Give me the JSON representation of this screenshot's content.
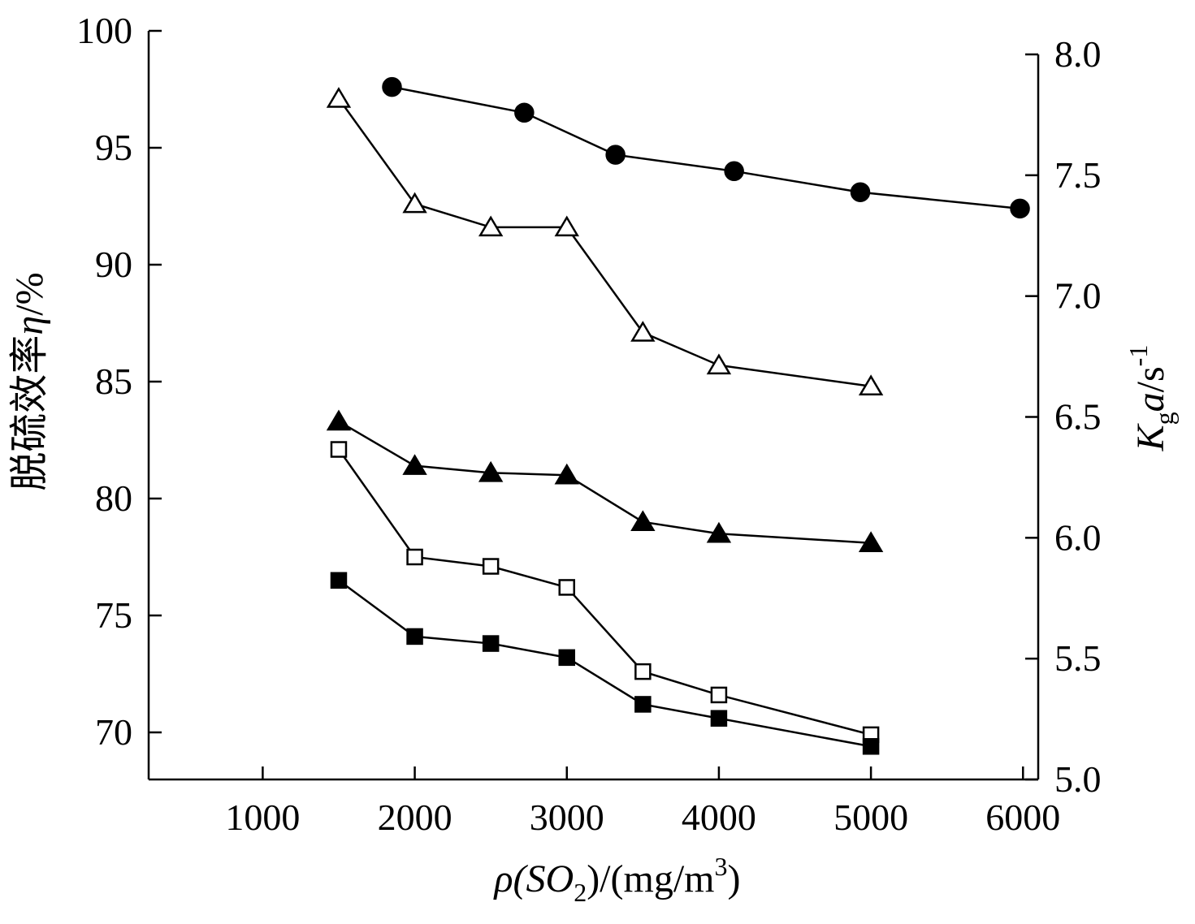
{
  "chart_data": {
    "type": "scatter",
    "xlabel": {
      "prefix": "ρ(SO",
      "sub": "2",
      "mid": ")/(mg/m",
      "sup": "3",
      "suffix": ")"
    },
    "ylabel_left": {
      "text": "脱硫效率",
      "symbol": "η",
      "unit": "/%"
    },
    "ylabel_right": {
      "k": "K",
      "sub": "g",
      "a": "a",
      "unit": "/s",
      "sup": "-1"
    },
    "x_ticks": [
      "1000",
      "2000",
      "3000",
      "4000",
      "5000",
      "6000"
    ],
    "y_left_ticks": [
      "70",
      "75",
      "80",
      "85",
      "90",
      "95",
      "100"
    ],
    "y_right_ticks": [
      "5.0",
      "5.5",
      "6.0",
      "6.5",
      "7.0",
      "7.5",
      "8.0"
    ],
    "xlim": [
      250,
      6100
    ],
    "ylim_left": [
      68,
      100
    ],
    "ylim_right": [
      5.0,
      8.0
    ],
    "grid": false,
    "series": [
      {
        "axis": "left",
        "marker": "filled-circle",
        "x": [
          1850,
          2720,
          3320,
          4100,
          4930,
          5980
        ],
        "y": [
          97.6,
          96.5,
          94.7,
          94.0,
          93.1,
          92.4
        ]
      },
      {
        "axis": "left",
        "marker": "open-triangle",
        "x": [
          1500,
          2000,
          2500,
          3000,
          3500,
          4000,
          5000
        ],
        "y": [
          97.1,
          92.6,
          91.6,
          91.6,
          87.1,
          85.7,
          84.8
        ]
      },
      {
        "axis": "left",
        "marker": "filled-triangle",
        "x": [
          1500,
          2000,
          2500,
          3000,
          3500,
          4000,
          5000
        ],
        "y": [
          83.3,
          81.4,
          81.1,
          81.0,
          79.0,
          78.5,
          78.1
        ]
      },
      {
        "axis": "left",
        "marker": "open-square",
        "x": [
          1500,
          2000,
          2500,
          3000,
          3500,
          4000,
          5000
        ],
        "y": [
          82.1,
          77.5,
          77.1,
          76.2,
          72.6,
          71.6,
          69.9
        ]
      },
      {
        "axis": "left",
        "marker": "filled-square",
        "x": [
          1500,
          2000,
          2500,
          3000,
          3500,
          4000,
          5000
        ],
        "y": [
          76.5,
          74.1,
          73.8,
          73.2,
          71.2,
          70.6,
          69.4
        ]
      }
    ]
  }
}
